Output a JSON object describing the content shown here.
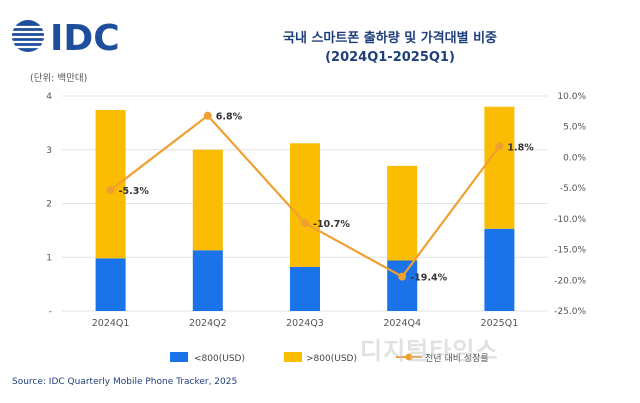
{
  "brand": {
    "logo_text": "IDC",
    "logo_color": "#1f4e9c"
  },
  "title_line1": "국내 스마트폰 출하량 및 가격대별 비중",
  "title_line2": "(2024Q1-2025Q1)",
  "unit_label": "(단위: 백만대)",
  "source": "Source: IDC Quarterly Mobile Phone Tracker, 2025",
  "watermark": "디지털타임스",
  "chart_data": {
    "type": "bar",
    "stacked": true,
    "categories": [
      "2024Q1",
      "2024Q2",
      "2024Q3",
      "2024Q4",
      "2025Q1"
    ],
    "series": [
      {
        "name": "<800(USD)",
        "values": [
          0.98,
          1.13,
          0.82,
          0.94,
          1.53
        ],
        "color": "#1a73e8"
      },
      {
        "name": ">800(USD)",
        "values": [
          2.76,
          1.87,
          2.3,
          1.76,
          2.27
        ],
        "color": "#fbbc04"
      }
    ],
    "line_series": {
      "name": "전년 대비 성장률",
      "values": [
        -5.3,
        6.8,
        -10.7,
        -19.4,
        1.8
      ],
      "labels": [
        "-5.3%",
        "6.8%",
        "-10.7%",
        "-19.4%",
        "1.8%"
      ],
      "color": "#f0a030",
      "axis": "right"
    },
    "y_left": {
      "min": 0,
      "max": 4,
      "ticks": [
        "-",
        "1",
        "2",
        "3",
        "4"
      ]
    },
    "y_right": {
      "min": -25,
      "max": 10,
      "ticks": [
        "-25.0%",
        "-20.0%",
        "-15.0%",
        "-10.0%",
        "-5.0%",
        "0.0%",
        "5.0%",
        "10.0%"
      ]
    },
    "grid": true,
    "legend_position": "bottom"
  }
}
